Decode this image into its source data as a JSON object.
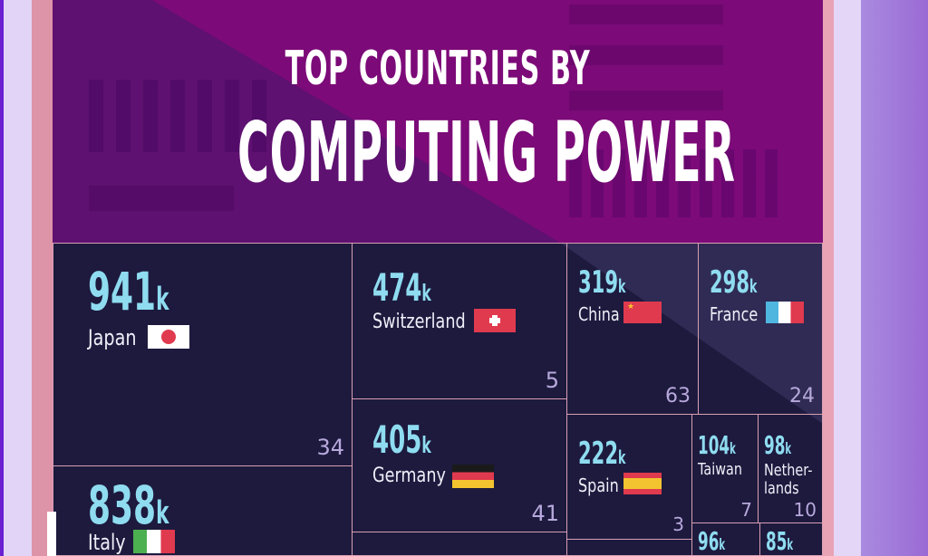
{
  "title": {
    "line1": "TOP COUNTRIES BY",
    "line2": "COMPUTING POWER"
  },
  "colors": {
    "cell_bg": "#1d1a3e",
    "value": "#8fdcf0",
    "border": "#d99fb3",
    "header": "#7c0a78"
  },
  "chart_data": {
    "type": "treemap",
    "unit_suffix": "k",
    "items": [
      {
        "country": "Japan",
        "value": "941",
        "count": "34",
        "flag": "japan-flag"
      },
      {
        "country": "Italy",
        "value": "838",
        "count": "",
        "flag": "italy-flag"
      },
      {
        "country": "Switzerland",
        "value": "474",
        "count": "5",
        "flag": "switzerland-flag"
      },
      {
        "country": "Germany",
        "value": "405",
        "count": "41",
        "flag": "germany-flag"
      },
      {
        "country": "China",
        "value": "319",
        "count": "63",
        "flag": "china-flag"
      },
      {
        "country": "France",
        "value": "298",
        "count": "24",
        "flag": "france-flag"
      },
      {
        "country": "Spain",
        "value": "222",
        "count": "3",
        "flag": "spain-flag"
      },
      {
        "country": "Taiwan",
        "value": "104",
        "count": "7",
        "flag": ""
      },
      {
        "country": "Nether-\nlands",
        "value": "98",
        "count": "10",
        "flag": ""
      },
      {
        "country": "",
        "value": "96",
        "count": "",
        "flag": ""
      },
      {
        "country": "",
        "value": "85",
        "count": "",
        "flag": ""
      }
    ]
  }
}
